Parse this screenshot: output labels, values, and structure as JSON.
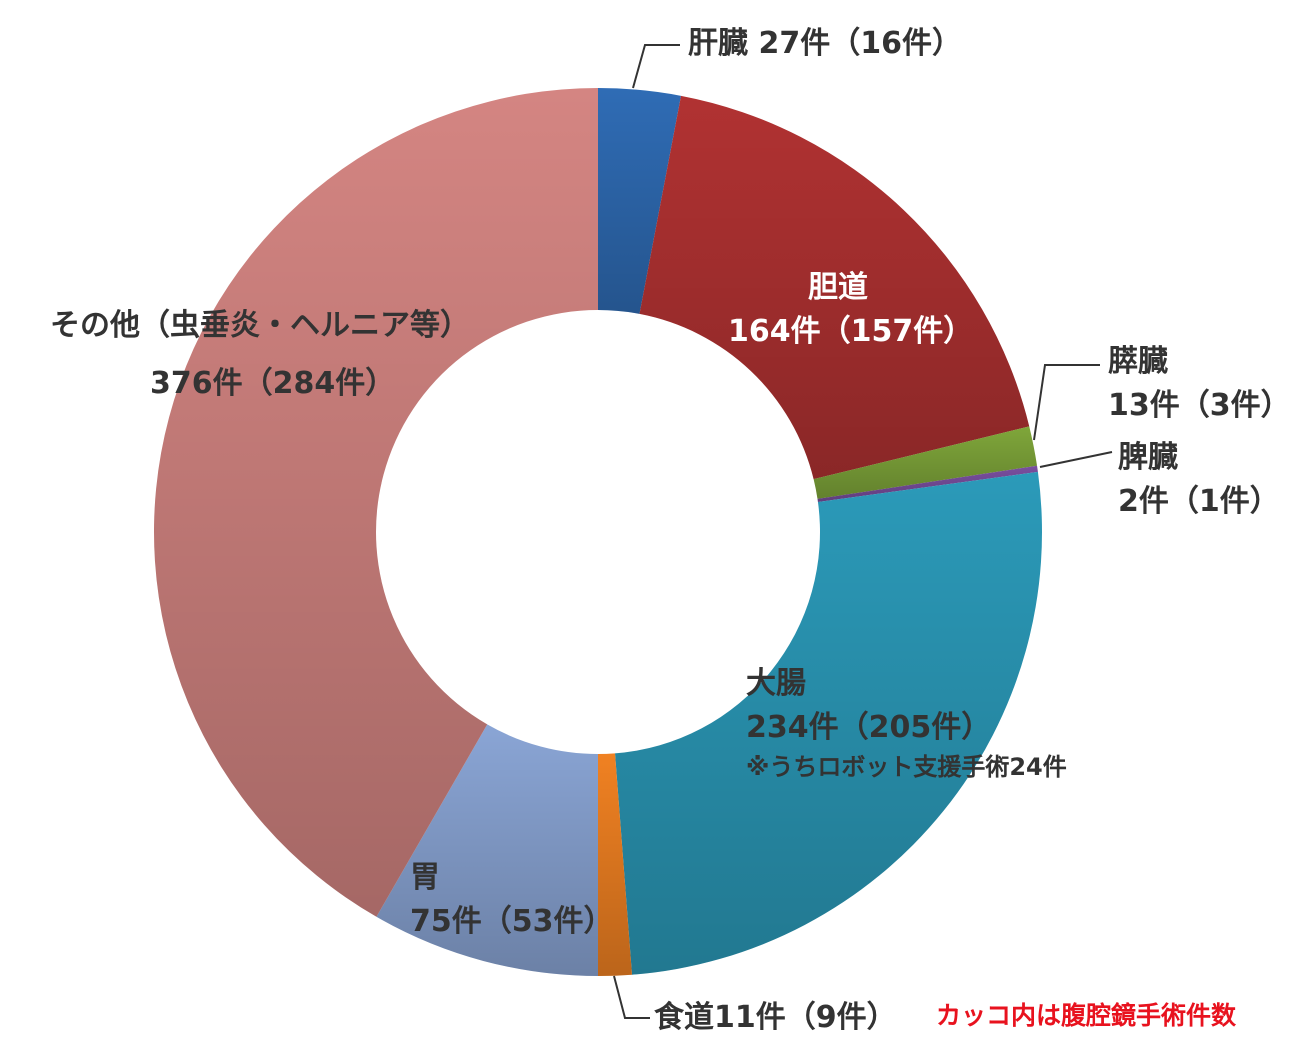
{
  "chart_data": {
    "type": "pie",
    "style": "donut",
    "slices": [
      {
        "label": "肝臓",
        "value": 27,
        "laparoscopic": 16,
        "color": "#2f6cb5",
        "text": "肝臓 27件（16件）"
      },
      {
        "label": "胆道",
        "value": 164,
        "laparoscopic": 157,
        "color": "#b13232",
        "text1": "胆道",
        "text2": "164件（157件）"
      },
      {
        "label": "膵臓",
        "value": 13,
        "laparoscopic": 3,
        "color": "#7fa63a",
        "text1": "膵臓",
        "text2": "13件（3件）"
      },
      {
        "label": "脾臓",
        "value": 2,
        "laparoscopic": 1,
        "color": "#7a4fa0",
        "text1": "脾臓",
        "text2": "2件（1件）"
      },
      {
        "label": "大腸",
        "value": 234,
        "laparoscopic": 205,
        "color": "#2b9ab9",
        "text1": "大腸",
        "text2": "234件（205件）",
        "note": "※うちロボット支援手術24件"
      },
      {
        "label": "食道",
        "value": 11,
        "laparoscopic": 9,
        "color": "#f08122",
        "text": "食道11件（9件）"
      },
      {
        "label": "胃",
        "value": 75,
        "laparoscopic": 53,
        "color": "#8aa5d5",
        "text1": "胃",
        "text2": "75件（53件）"
      },
      {
        "label": "その他（虫垂炎・ヘルニア等）",
        "value": 376,
        "laparoscopic": 284,
        "color": "#d48582",
        "text1": "その他（虫垂炎・ヘルニア等）",
        "text2": "376件（284件）"
      }
    ],
    "footnote": "カッコ内は腹腔鏡手術件数"
  }
}
